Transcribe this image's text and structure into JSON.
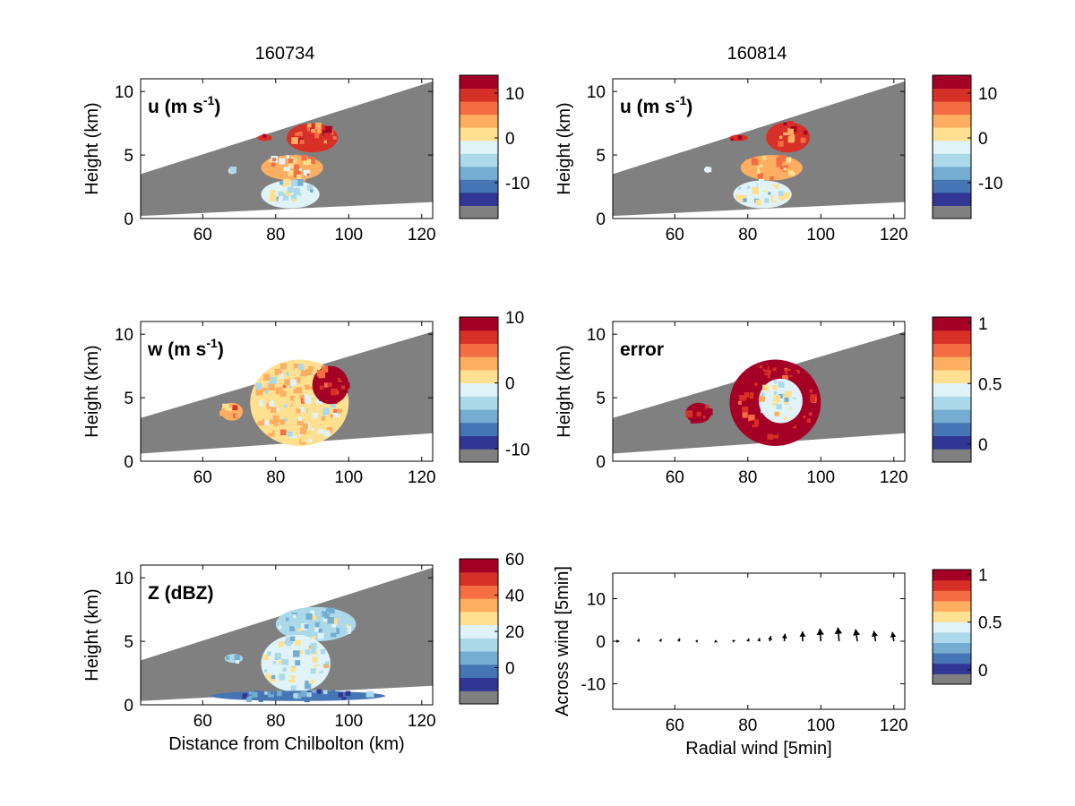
{
  "figure": {
    "column_titles": [
      "160734",
      "160814"
    ],
    "shared_xlabel": "Distance from Chilbolton (km)"
  },
  "chart_data": [
    {
      "id": "u1",
      "type": "heatmap",
      "panel_label": "u (m s⁻¹)",
      "ylabel": "Height (km)",
      "xlabel": "",
      "xlim": [
        43,
        123
      ],
      "ylim": [
        0,
        11
      ],
      "xticks": [
        60,
        80,
        100,
        120
      ],
      "yticks": [
        0,
        5,
        10
      ],
      "colorbar": {
        "ticks": [
          10,
          0,
          -10
        ],
        "range": [
          -18,
          14
        ]
      },
      "beam_coverage": {
        "upper_edge": [
          [
            43,
            3.5
          ],
          [
            123,
            10.8
          ]
        ],
        "lower_edge": [
          [
            43,
            0.2
          ],
          [
            123,
            1.3
          ]
        ]
      },
      "echo_regions": [
        {
          "label": "upper echo",
          "x_range": [
            83,
            97
          ],
          "y_range": [
            5.2,
            7.5
          ],
          "value": 8
        },
        {
          "label": "small upper patch",
          "x_range": [
            75,
            79
          ],
          "y_range": [
            6.1,
            6.6
          ],
          "value": 9
        },
        {
          "label": "small left patch",
          "x_range": [
            67,
            69
          ],
          "y_range": [
            3.5,
            4.0
          ],
          "value": -5
        },
        {
          "label": "mid echo",
          "x_range": [
            76,
            93
          ],
          "y_range": [
            3.0,
            5.0
          ],
          "value": 2
        },
        {
          "label": "lower echo",
          "x_range": [
            76,
            92
          ],
          "y_range": [
            0.8,
            3.0
          ],
          "value": -5
        }
      ]
    },
    {
      "id": "u2",
      "type": "heatmap",
      "panel_label": "u (m s⁻¹)",
      "ylabel": "Height (km)",
      "xlabel": "",
      "xlim": [
        43,
        123
      ],
      "ylim": [
        0,
        11
      ],
      "xticks": [
        60,
        80,
        100,
        120
      ],
      "yticks": [
        0,
        5,
        10
      ],
      "colorbar": {
        "ticks": [
          10,
          0,
          -10
        ],
        "range": [
          -18,
          14
        ]
      },
      "beam_coverage": {
        "upper_edge": [
          [
            43,
            3.5
          ],
          [
            123,
            10.8
          ]
        ],
        "lower_edge": [
          [
            43,
            0.2
          ],
          [
            123,
            1.3
          ]
        ]
      },
      "echo_regions": [
        {
          "label": "upper echo",
          "x_range": [
            85,
            97
          ],
          "y_range": [
            5.2,
            7.6
          ],
          "value": 8
        },
        {
          "label": "small upper patch",
          "x_range": [
            75,
            80
          ],
          "y_range": [
            6.1,
            6.6
          ],
          "value": 9
        },
        {
          "label": "small left patch",
          "x_range": [
            68,
            70
          ],
          "y_range": [
            3.6,
            4.1
          ],
          "value": -5
        },
        {
          "label": "mid echo",
          "x_range": [
            78,
            95
          ],
          "y_range": [
            3.0,
            5.0
          ],
          "value": 2
        },
        {
          "label": "lower echo",
          "x_range": [
            76,
            92
          ],
          "y_range": [
            0.8,
            3.0
          ],
          "value": -5
        }
      ]
    },
    {
      "id": "w1",
      "type": "heatmap",
      "panel_label": "w (m s⁻¹)",
      "ylabel": "Height (km)",
      "xlabel": "",
      "xlim": [
        43,
        123
      ],
      "ylim": [
        0,
        11
      ],
      "xticks": [
        60,
        80,
        100,
        120
      ],
      "yticks": [
        0,
        5,
        10
      ],
      "colorbar": {
        "ticks": [
          10,
          0,
          -10
        ],
        "range": [
          -12,
          10
        ]
      },
      "beam_coverage": {
        "upper_edge": [
          [
            43,
            3.4
          ],
          [
            123,
            10.2
          ]
        ],
        "lower_edge": [
          [
            43,
            0.6
          ],
          [
            123,
            2.2
          ]
        ]
      },
      "echo_regions": [
        {
          "label": "small left cell",
          "x_range": [
            65,
            71
          ],
          "y_range": [
            3.2,
            4.6
          ],
          "value": 3
        },
        {
          "label": "main tilted echo",
          "x_range": [
            73,
            100
          ],
          "y_range": [
            1.2,
            8.0
          ],
          "value": 0
        },
        {
          "label": "updraft core",
          "x_range": [
            90,
            100
          ],
          "y_range": [
            4.5,
            7.5
          ],
          "value": 8
        }
      ]
    },
    {
      "id": "error",
      "type": "heatmap",
      "panel_label": "error",
      "ylabel": "Height (km)",
      "xlabel": "",
      "xlim": [
        43,
        123
      ],
      "ylim": [
        0,
        11
      ],
      "xticks": [
        60,
        80,
        100,
        120
      ],
      "yticks": [
        0,
        5,
        10
      ],
      "colorbar": {
        "ticks": [
          1,
          0.5,
          0
        ],
        "range": [
          -0.15,
          1.05
        ]
      },
      "beam_coverage": {
        "upper_edge": [
          [
            43,
            3.4
          ],
          [
            123,
            10.2
          ]
        ],
        "lower_edge": [
          [
            43,
            0.6
          ],
          [
            123,
            2.2
          ]
        ]
      },
      "echo_regions": [
        {
          "label": "small left cell",
          "x_range": [
            63,
            70
          ],
          "y_range": [
            3.0,
            4.6
          ],
          "value": 1
        },
        {
          "label": "main echo",
          "x_range": [
            75,
            100
          ],
          "y_range": [
            1.2,
            8.0
          ],
          "value": 1
        },
        {
          "label": "low error core",
          "x_range": [
            83,
            95
          ],
          "y_range": [
            3.0,
            6.5
          ],
          "value": 0.4
        }
      ]
    },
    {
      "id": "z",
      "type": "heatmap",
      "panel_label": "Z (dBZ)",
      "ylabel": "Height (km)",
      "xlabel": "Distance from Chilbolton (km)",
      "xlim": [
        43,
        123
      ],
      "ylim": [
        0,
        11
      ],
      "xticks": [
        60,
        80,
        100,
        120
      ],
      "yticks": [
        0,
        5,
        10
      ],
      "colorbar": {
        "ticks": [
          60,
          40,
          20,
          0
        ],
        "range": [
          -20,
          60
        ]
      },
      "beam_coverage": {
        "upper_edge": [
          [
            43,
            3.5
          ],
          [
            123,
            10.8
          ]
        ],
        "lower_edge": [
          [
            43,
            0.3
          ],
          [
            123,
            1.5
          ]
        ]
      },
      "echo_regions": [
        {
          "label": "upper anvil",
          "x_range": [
            80,
            102
          ],
          "y_range": [
            5.0,
            7.7
          ],
          "value": 10
        },
        {
          "label": "left patch",
          "x_range": [
            66,
            71
          ],
          "y_range": [
            3.3,
            4.0
          ],
          "value": 5
        },
        {
          "label": "main column",
          "x_range": [
            76,
            95
          ],
          "y_range": [
            1.0,
            5.5
          ],
          "value": 15
        },
        {
          "label": "low-level clutter",
          "x_range": [
            62,
            110
          ],
          "y_range": [
            0.3,
            1.1
          ],
          "value": -5
        }
      ]
    },
    {
      "id": "wind",
      "type": "scatter",
      "panel_label": "",
      "ylabel": "Across wind [5min]",
      "xlabel": "Radial wind [5min]",
      "xlim": [
        43,
        123
      ],
      "ylim": [
        -16,
        16
      ],
      "xticks": [
        60,
        80,
        100,
        120
      ],
      "yticks": [
        10,
        0,
        -10
      ],
      "colorbar": {
        "ticks": [
          1,
          0.5,
          0
        ],
        "range": [
          -0.15,
          1.05
        ]
      },
      "arrows": [
        {
          "x": 44,
          "dx": 1.0,
          "dy": 0.0
        },
        {
          "x": 50,
          "dx": 0.3,
          "dy": 0.8
        },
        {
          "x": 56,
          "dx": 0.4,
          "dy": 0.8
        },
        {
          "x": 61,
          "dx": 0.5,
          "dy": 1.0
        },
        {
          "x": 66,
          "dx": 0.3,
          "dy": 0.4
        },
        {
          "x": 71,
          "dx": 0.8,
          "dy": -0.2
        },
        {
          "x": 76,
          "dx": 0.6,
          "dy": 0.3
        },
        {
          "x": 80,
          "dx": 0.4,
          "dy": 0.9
        },
        {
          "x": 83,
          "dx": 0.3,
          "dy": 1.1
        },
        {
          "x": 86,
          "dx": 0.4,
          "dy": 1.8
        },
        {
          "x": 90,
          "dx": 0.2,
          "dy": 2.6
        },
        {
          "x": 95,
          "dx": 0.0,
          "dy": 3.4
        },
        {
          "x": 100,
          "dx": -0.3,
          "dy": 4.4
        },
        {
          "x": 105,
          "dx": -0.4,
          "dy": 4.8
        },
        {
          "x": 110,
          "dx": -0.6,
          "dy": 4.2
        },
        {
          "x": 115,
          "dx": -0.6,
          "dy": 3.6
        },
        {
          "x": 120,
          "dx": -0.5,
          "dy": 3.2
        }
      ]
    }
  ],
  "colors": {
    "no_data": "#808080",
    "axes_line": "#000000",
    "arrow": "#000000"
  },
  "colormap": [
    "#313695",
    "#4575b4",
    "#74add1",
    "#abd9e9",
    "#e0f3f8",
    "#fee090",
    "#fdae61",
    "#f46d43",
    "#d73027",
    "#a50026"
  ]
}
